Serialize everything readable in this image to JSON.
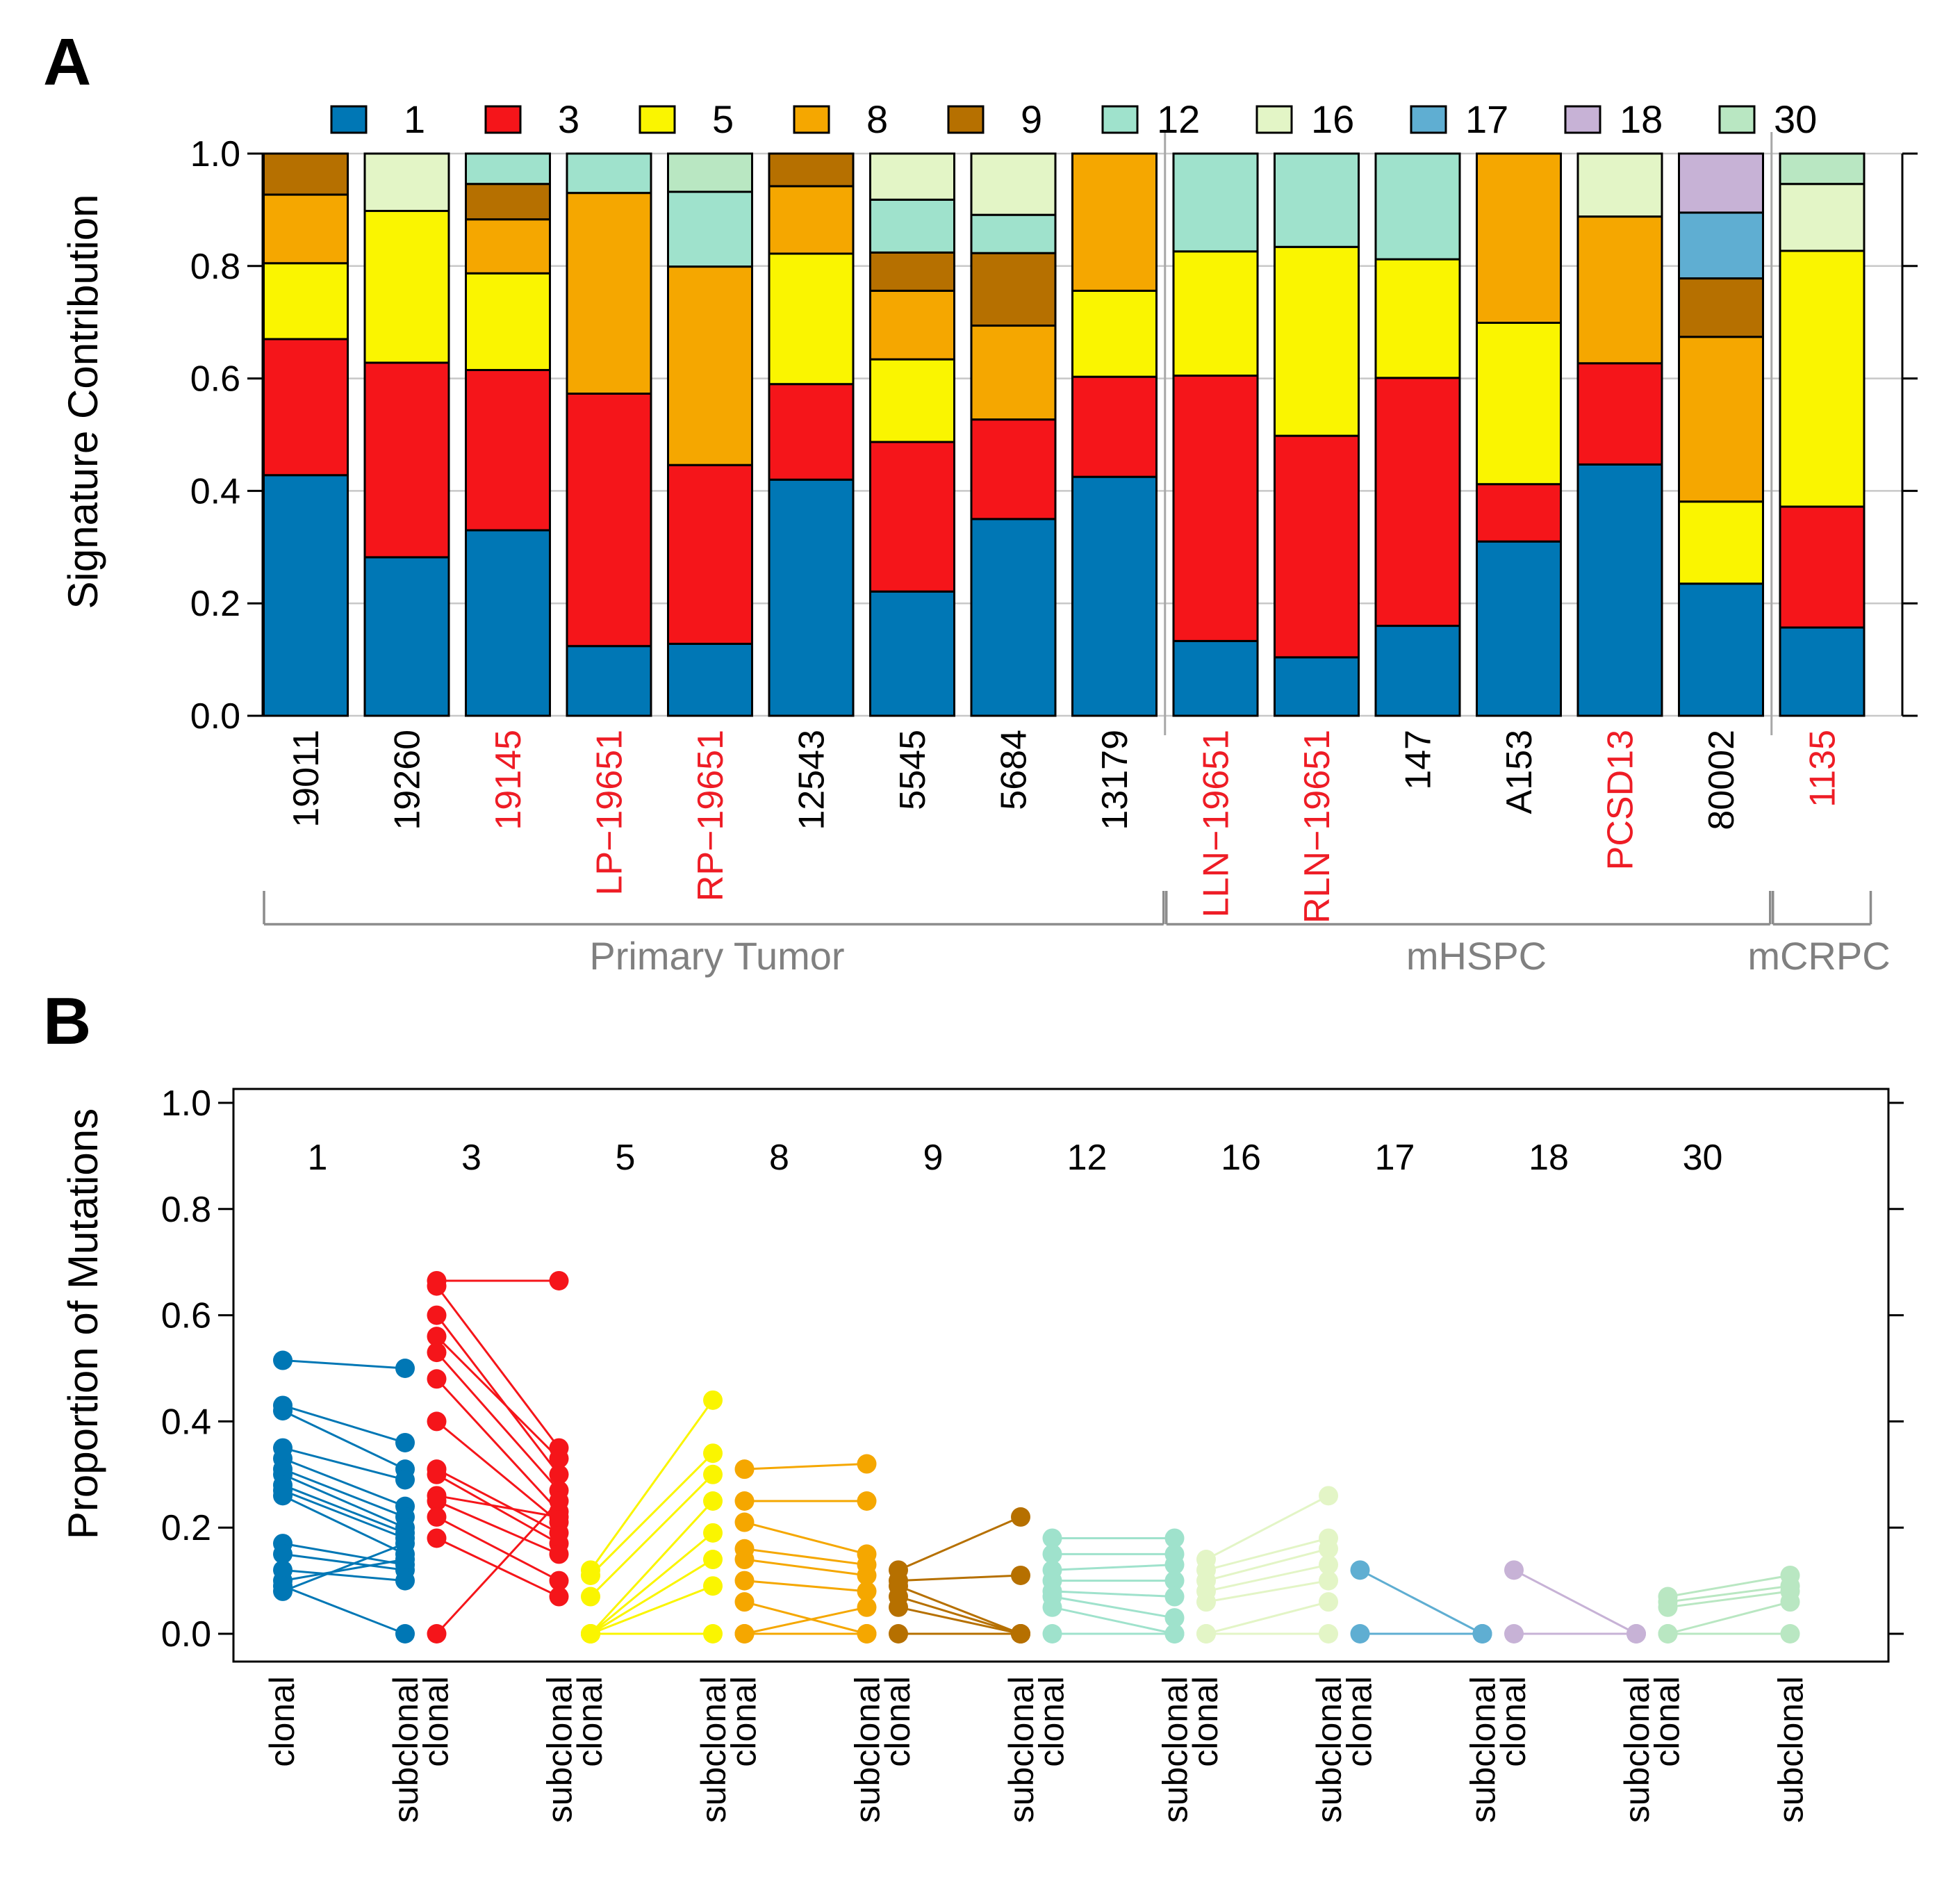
{
  "colors": {
    "1": "#0077B5",
    "3": "#F5151A",
    "5": "#FAF500",
    "8": "#F5A700",
    "9": "#B67000",
    "12": "#9FE2CC",
    "16": "#E3F5C6",
    "17": "#5FAED2",
    "18": "#C7B2D6",
    "30": "#B9E7C2",
    "red_label": "#EE1C25",
    "black": "#000000",
    "gray_text": "#808080"
  },
  "chart_data": [
    {
      "panel_label": "A",
      "type": "bar",
      "stacked": true,
      "ylabel": "Signature Contribution",
      "ylim": [
        0,
        1
      ],
      "yticks": [
        "0.0",
        "0.2",
        "0.4",
        "0.6",
        "0.8",
        "1.0"
      ],
      "grid": true,
      "legend_position": "top",
      "legend": [
        "1",
        "3",
        "5",
        "8",
        "9",
        "12",
        "16",
        "17",
        "18",
        "30"
      ],
      "samples": [
        {
          "name": "19011",
          "highlight": false,
          "segments": [
            {
              "sig": "1",
              "v": 0.428
            },
            {
              "sig": "3",
              "v": 0.242
            },
            {
              "sig": "5",
              "v": 0.135
            },
            {
              "sig": "8",
              "v": 0.122
            },
            {
              "sig": "9",
              "v": 0.073
            }
          ]
        },
        {
          "name": "19260",
          "highlight": false,
          "segments": [
            {
              "sig": "1",
              "v": 0.282
            },
            {
              "sig": "3",
              "v": 0.346
            },
            {
              "sig": "5",
              "v": 0.27
            },
            {
              "sig": "16",
              "v": 0.102
            }
          ]
        },
        {
          "name": "19145",
          "highlight": true,
          "segments": [
            {
              "sig": "1",
              "v": 0.33
            },
            {
              "sig": "3",
              "v": 0.285
            },
            {
              "sig": "5",
              "v": 0.172
            },
            {
              "sig": "8",
              "v": 0.096
            },
            {
              "sig": "9",
              "v": 0.063
            },
            {
              "sig": "12",
              "v": 0.054
            }
          ]
        },
        {
          "name": "LP−19651",
          "highlight": true,
          "segments": [
            {
              "sig": "1",
              "v": 0.124
            },
            {
              "sig": "3",
              "v": 0.449
            },
            {
              "sig": "8",
              "v": 0.357
            },
            {
              "sig": "12",
              "v": 0.07
            }
          ]
        },
        {
          "name": "RP−19651",
          "highlight": true,
          "segments": [
            {
              "sig": "1",
              "v": 0.128
            },
            {
              "sig": "3",
              "v": 0.318
            },
            {
              "sig": "8",
              "v": 0.353
            },
            {
              "sig": "12",
              "v": 0.133
            },
            {
              "sig": "30",
              "v": 0.068
            }
          ]
        },
        {
          "name": "12543",
          "highlight": false,
          "segments": [
            {
              "sig": "1",
              "v": 0.42
            },
            {
              "sig": "3",
              "v": 0.17
            },
            {
              "sig": "5",
              "v": 0.232
            },
            {
              "sig": "8",
              "v": 0.12
            },
            {
              "sig": "9",
              "v": 0.058
            }
          ]
        },
        {
          "name": "5545",
          "highlight": false,
          "segments": [
            {
              "sig": "1",
              "v": 0.221
            },
            {
              "sig": "3",
              "v": 0.266
            },
            {
              "sig": "5",
              "v": 0.147
            },
            {
              "sig": "8",
              "v": 0.122
            },
            {
              "sig": "9",
              "v": 0.068
            },
            {
              "sig": "12",
              "v": 0.094
            },
            {
              "sig": "16",
              "v": 0.082
            }
          ]
        },
        {
          "name": "5684",
          "highlight": false,
          "segments": [
            {
              "sig": "1",
              "v": 0.35
            },
            {
              "sig": "3",
              "v": 0.177
            },
            {
              "sig": "8",
              "v": 0.167
            },
            {
              "sig": "9",
              "v": 0.129
            },
            {
              "sig": "12",
              "v": 0.068
            },
            {
              "sig": "16",
              "v": 0.109
            }
          ]
        },
        {
          "name": "13179",
          "highlight": false,
          "segments": [
            {
              "sig": "1",
              "v": 0.425
            },
            {
              "sig": "3",
              "v": 0.178
            },
            {
              "sig": "5",
              "v": 0.153
            },
            {
              "sig": "8",
              "v": 0.244
            }
          ]
        },
        {
          "name": "LLN−19651",
          "highlight": true,
          "segments": [
            {
              "sig": "1",
              "v": 0.133
            },
            {
              "sig": "3",
              "v": 0.472
            },
            {
              "sig": "5",
              "v": 0.221
            },
            {
              "sig": "12",
              "v": 0.174
            }
          ]
        },
        {
          "name": "RLN−19651",
          "highlight": true,
          "segments": [
            {
              "sig": "1",
              "v": 0.104
            },
            {
              "sig": "3",
              "v": 0.394
            },
            {
              "sig": "5",
              "v": 0.336
            },
            {
              "sig": "12",
              "v": 0.166
            }
          ]
        },
        {
          "name": "147",
          "highlight": false,
          "segments": [
            {
              "sig": "1",
              "v": 0.16
            },
            {
              "sig": "3",
              "v": 0.441
            },
            {
              "sig": "5",
              "v": 0.211
            },
            {
              "sig": "12",
              "v": 0.188
            }
          ]
        },
        {
          "name": "A153",
          "highlight": false,
          "segments": [
            {
              "sig": "1",
              "v": 0.31
            },
            {
              "sig": "3",
              "v": 0.102
            },
            {
              "sig": "5",
              "v": 0.287
            },
            {
              "sig": "8",
              "v": 0.301
            }
          ]
        },
        {
          "name": "PCSD13",
          "highlight": true,
          "segments": [
            {
              "sig": "1",
              "v": 0.447
            },
            {
              "sig": "3",
              "v": 0.18
            },
            {
              "sig": "8",
              "v": 0.261
            },
            {
              "sig": "16",
              "v": 0.112
            }
          ]
        },
        {
          "name": "80002",
          "highlight": false,
          "segments": [
            {
              "sig": "1",
              "v": 0.235
            },
            {
              "sig": "5",
              "v": 0.146
            },
            {
              "sig": "8",
              "v": 0.293
            },
            {
              "sig": "9",
              "v": 0.104
            },
            {
              "sig": "17",
              "v": 0.117
            },
            {
              "sig": "18",
              "v": 0.105
            }
          ]
        },
        {
          "name": "1135",
          "highlight": true,
          "segments": [
            {
              "sig": "1",
              "v": 0.157
            },
            {
              "sig": "3",
              "v": 0.215
            },
            {
              "sig": "5",
              "v": 0.455
            },
            {
              "sig": "16",
              "v": 0.119
            },
            {
              "sig": "30",
              "v": 0.054
            }
          ]
        }
      ],
      "groups": [
        {
          "label": "Primary Tumor",
          "start": 0,
          "end": 8
        },
        {
          "label": "mHSPC",
          "start": 9,
          "end": 14
        },
        {
          "label": "mCRPC",
          "start": 15,
          "end": 15
        }
      ]
    },
    {
      "panel_label": "B",
      "type": "scatter",
      "paired": true,
      "ylabel": "Proportion of Mutations",
      "ylim": [
        0,
        1
      ],
      "yticks": [
        "0.0",
        "0.2",
        "0.4",
        "0.6",
        "0.8",
        "1.0"
      ],
      "grid": false,
      "x_labels": [
        "clonal",
        "subclonal"
      ],
      "groups": [
        {
          "sig": "1",
          "pairs": [
            [
              0.515,
              0.5
            ],
            [
              0.43,
              0.36
            ],
            [
              0.42,
              0.31
            ],
            [
              0.35,
              0.29
            ],
            [
              0.33,
              0.24
            ],
            [
              0.31,
              0.22
            ],
            [
              0.3,
              0.2
            ],
            [
              0.28,
              0.19
            ],
            [
              0.27,
              0.18
            ],
            [
              0.26,
              0.15
            ],
            [
              0.17,
              0.13
            ],
            [
              0.15,
              0.12
            ],
            [
              0.12,
              0.1
            ],
            [
              0.1,
              0.14
            ],
            [
              0.09,
              0.0
            ],
            [
              0.08,
              0.17
            ]
          ]
        },
        {
          "sig": "3",
          "pairs": [
            [
              0.665,
              0.665
            ],
            [
              0.655,
              0.35
            ],
            [
              0.6,
              0.3
            ],
            [
              0.56,
              0.33
            ],
            [
              0.53,
              0.27
            ],
            [
              0.48,
              0.23
            ],
            [
              0.4,
              0.21
            ],
            [
              0.31,
              0.19
            ],
            [
              0.3,
              0.17
            ],
            [
              0.26,
              0.22
            ],
            [
              0.25,
              0.15
            ],
            [
              0.22,
              0.1
            ],
            [
              0.18,
              0.07
            ],
            [
              0.0,
              0.25
            ]
          ]
        },
        {
          "sig": "5",
          "pairs": [
            [
              0.12,
              0.44
            ],
            [
              0.11,
              0.34
            ],
            [
              0.07,
              0.3
            ],
            [
              0.0,
              0.25
            ],
            [
              0.0,
              0.19
            ],
            [
              0.0,
              0.14
            ],
            [
              0.0,
              0.09
            ],
            [
              0.0,
              0.0
            ]
          ]
        },
        {
          "sig": "8",
          "pairs": [
            [
              0.31,
              0.32
            ],
            [
              0.25,
              0.25
            ],
            [
              0.21,
              0.15
            ],
            [
              0.16,
              0.13
            ],
            [
              0.14,
              0.11
            ],
            [
              0.1,
              0.08
            ],
            [
              0.06,
              0.0
            ],
            [
              0.0,
              0.0
            ],
            [
              0.0,
              0.05
            ]
          ]
        },
        {
          "sig": "9",
          "pairs": [
            [
              0.12,
              0.22
            ],
            [
              0.1,
              0.11
            ],
            [
              0.09,
              0.0
            ],
            [
              0.07,
              0.0
            ],
            [
              0.05,
              0.0
            ],
            [
              0.0,
              0.0
            ]
          ]
        },
        {
          "sig": "12",
          "pairs": [
            [
              0.18,
              0.18
            ],
            [
              0.15,
              0.15
            ],
            [
              0.12,
              0.13
            ],
            [
              0.1,
              0.1
            ],
            [
              0.08,
              0.07
            ],
            [
              0.07,
              0.03
            ],
            [
              0.05,
              0.0
            ],
            [
              0.0,
              0.0
            ]
          ]
        },
        {
          "sig": "16",
          "pairs": [
            [
              0.14,
              0.26
            ],
            [
              0.12,
              0.18
            ],
            [
              0.1,
              0.16
            ],
            [
              0.08,
              0.13
            ],
            [
              0.06,
              0.1
            ],
            [
              0.0,
              0.06
            ],
            [
              0.0,
              0.0
            ]
          ]
        },
        {
          "sig": "17",
          "pairs": [
            [
              0.12,
              0.0
            ],
            [
              0.0,
              0.0
            ]
          ]
        },
        {
          "sig": "18",
          "pairs": [
            [
              0.12,
              0.0
            ],
            [
              0.0,
              0.0
            ]
          ]
        },
        {
          "sig": "30",
          "pairs": [
            [
              0.07,
              0.11
            ],
            [
              0.06,
              0.09
            ],
            [
              0.05,
              0.08
            ],
            [
              0.0,
              0.06
            ],
            [
              0.0,
              0.0
            ]
          ]
        }
      ]
    }
  ]
}
